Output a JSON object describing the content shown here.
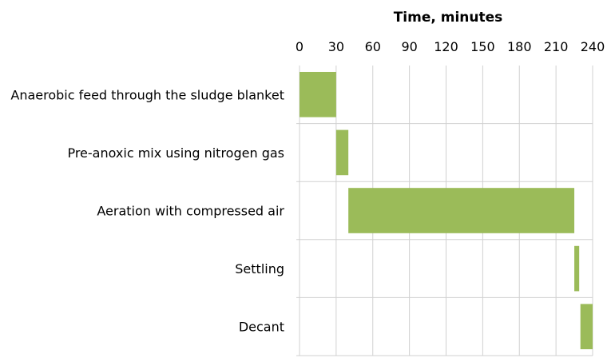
{
  "chart_data": {
    "type": "bar",
    "orientation": "horizontal-floating",
    "title": "",
    "xlabel": "Time, minutes",
    "ylabel": "",
    "x_axis_position": "top",
    "xlim": [
      0,
      240
    ],
    "xticks": [
      0,
      30,
      60,
      90,
      120,
      150,
      180,
      210,
      240
    ],
    "grid": true,
    "legend": "none",
    "bar_color": "#9BBB59",
    "grid_color": "#D0D0D0",
    "categories": [
      "Anaerobic feed through the sludge blanket",
      "Pre-anoxic mix using nitrogen gas",
      "Aeration with compressed air",
      "Settling",
      "Decant"
    ],
    "series": [
      {
        "start": [
          0,
          30,
          40,
          225,
          230
        ],
        "end": [
          30,
          40,
          225,
          229,
          240
        ]
      }
    ]
  }
}
